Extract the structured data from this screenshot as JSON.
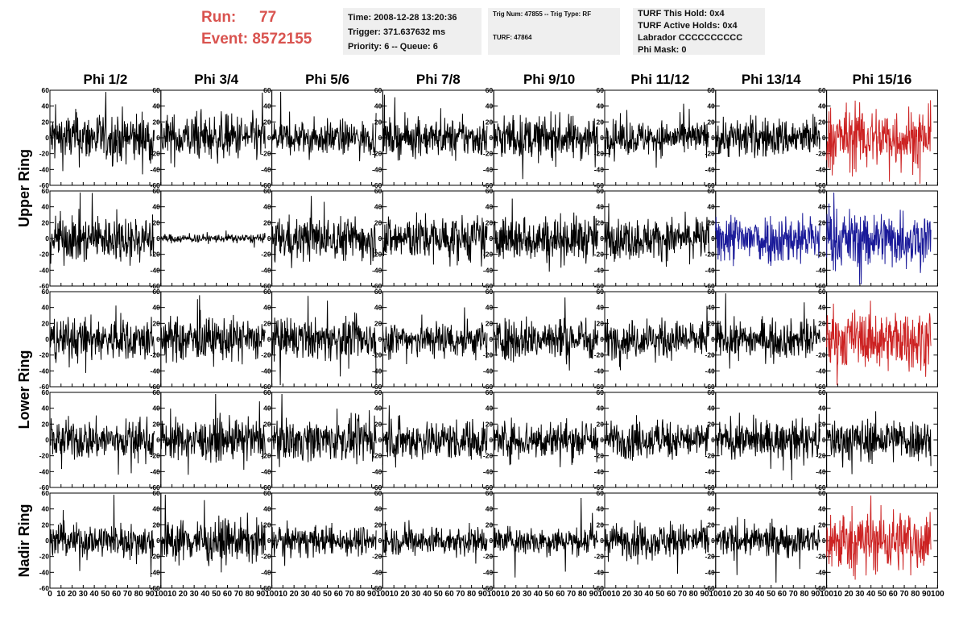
{
  "header": {
    "run_label": "Run:",
    "run_value": "77",
    "event_label": "Event:",
    "event_value": "8572155",
    "box1": [
      "Time: 2008-12-28 13:20:36",
      "Trigger: 371.637632 ms",
      "Priority: 6 -- Queue: 6"
    ],
    "box2": [
      "Trig Num: 47855 -- Trig Type: RF",
      "TURF: 47864"
    ],
    "box3": [
      "TURF This Hold: 0x4",
      "TURF Active Holds: 0x4",
      "Labrador CCCCCCCCCC",
      "Phi Mask: 0"
    ]
  },
  "colors": {
    "normal": "#000000",
    "triggered_red": "#cc2222",
    "triggered_blue": "#1a1a99",
    "accent": "#d9534f"
  },
  "chart_data": {
    "type": "line",
    "columns": [
      "Phi 1/2",
      "Phi 3/4",
      "Phi 5/6",
      "Phi 7/8",
      "Phi 9/10",
      "Phi 11/12",
      "Phi 13/14",
      "Phi 15/16"
    ],
    "rings": [
      "Upper Ring",
      "Lower Ring",
      "Nadir Ring"
    ],
    "rows_per_ring": [
      2,
      2,
      1
    ],
    "xlim": [
      0,
      100
    ],
    "ylim": [
      -60,
      60
    ],
    "x_ticks": [
      "0",
      "10",
      "20",
      "30",
      "40",
      "50",
      "60",
      "70",
      "80",
      "90",
      "100"
    ],
    "y_ticks": [
      "60",
      "40",
      "20",
      "0",
      "-20",
      "-40",
      "-60"
    ],
    "x_tick_values": [
      0,
      10,
      20,
      30,
      40,
      50,
      60,
      70,
      80,
      90,
      100
    ],
    "y_tick_values": [
      60,
      40,
      20,
      0,
      -20,
      -40,
      -60
    ],
    "grid": false,
    "waveform_samples": 260,
    "waveform_x_range": [
      0,
      94
    ],
    "panel_amplitudes": [
      [
        18,
        16,
        12,
        13,
        15,
        12,
        14,
        22
      ],
      [
        16,
        3,
        15,
        16,
        16,
        14,
        18,
        20
      ],
      [
        15,
        15,
        14,
        13,
        15,
        13,
        13,
        20
      ],
      [
        14,
        14,
        14,
        14,
        14,
        13,
        13,
        15
      ],
      [
        12,
        15,
        10,
        10,
        10,
        12,
        11,
        22
      ]
    ],
    "panel_colors": [
      [
        "normal",
        "normal",
        "normal",
        "normal",
        "normal",
        "normal",
        "normal",
        "triggered_red"
      ],
      [
        "normal",
        "normal",
        "normal",
        "normal",
        "normal",
        "normal",
        "triggered_blue",
        "triggered_blue"
      ],
      [
        "normal",
        "normal",
        "normal",
        "normal",
        "normal",
        "normal",
        "normal",
        "triggered_red"
      ],
      [
        "normal",
        "normal",
        "normal",
        "normal",
        "normal",
        "normal",
        "normal",
        "normal"
      ],
      [
        "normal",
        "normal",
        "normal",
        "normal",
        "normal",
        "normal",
        "normal",
        "triggered_red"
      ]
    ]
  }
}
